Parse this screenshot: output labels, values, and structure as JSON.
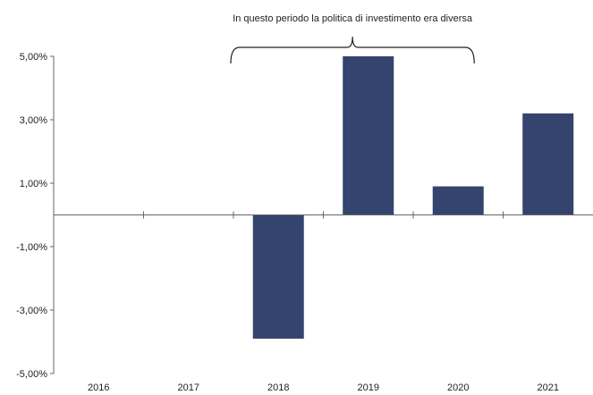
{
  "chart_data": {
    "type": "bar",
    "title": "",
    "xlabel": "",
    "ylabel": "",
    "categories": [
      "2016",
      "2017",
      "2018",
      "2019",
      "2020",
      "2021"
    ],
    "values": [
      null,
      null,
      -3.9,
      5.0,
      0.9,
      3.2
    ],
    "ylim": [
      -5,
      5
    ],
    "yticks": [
      5,
      3,
      1,
      -1,
      -3,
      -5
    ],
    "ytick_labels": [
      "5,00%",
      "3,00%",
      "1,00%",
      "-1,00%",
      "-3,00%",
      "-5,00%"
    ],
    "bar_color": "#34446e",
    "grid": false,
    "legend": "none",
    "annotation": {
      "text": "In questo periodo la politica di investimento era diversa",
      "span": [
        "2017",
        "2020"
      ]
    }
  }
}
